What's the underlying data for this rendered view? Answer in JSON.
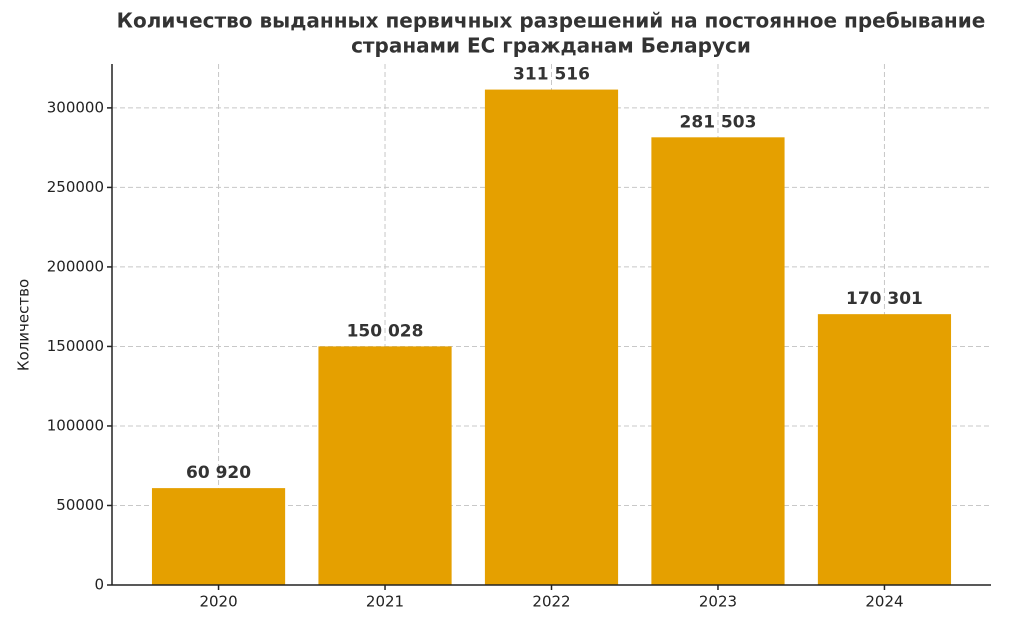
{
  "chart_data": {
    "type": "bar",
    "title": [
      "Количество выданных первичных разрешений на постоянное пребывание",
      "странами ЕС гражданам Беларуси"
    ],
    "y_label": "Количество",
    "categories": [
      "2020",
      "2021",
      "2022",
      "2023",
      "2024"
    ],
    "values": [
      60920,
      150028,
      311516,
      281503,
      170301
    ],
    "value_labels": [
      "60 920",
      "150 028",
      "311 516",
      "281 503",
      "170 301"
    ],
    "color": "#e5a000",
    "ylim": [
      0,
      327600
    ],
    "yticks": [
      0,
      50000,
      100000,
      150000,
      200000,
      250000,
      300000
    ],
    "grid": true
  }
}
